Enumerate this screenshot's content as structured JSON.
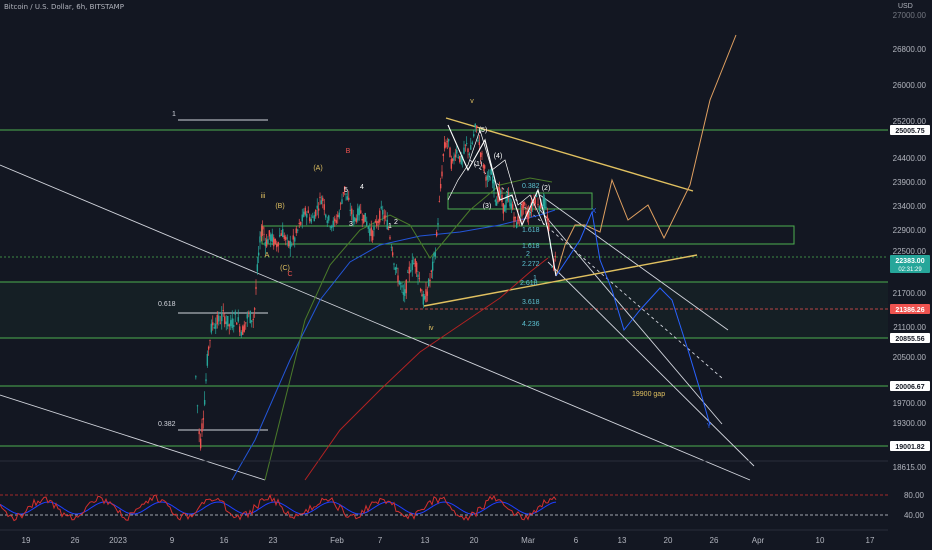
{
  "header": {
    "title": "Bitcoin / U.S. Dollar, 6h, BITSTAMP",
    "currency": "USD"
  },
  "colors": {
    "bg": "#131722",
    "up": "#26a69a",
    "down": "#ef5350",
    "zone": "#4caf50",
    "trend": "#e0c060",
    "projection": "#e0a060",
    "blue": "#2962ff",
    "red_ma": "#b22222",
    "green_ma": "#4a7a2a",
    "rsi": "#d32f2f",
    "rsi_signal": "#1e3fff",
    "text": "#b2b5be"
  },
  "chart_data": {
    "type": "candlestick",
    "ylim": [
      18150,
      27800
    ],
    "y_ticks": [
      26800,
      26000,
      25200,
      24400,
      23900,
      23400,
      22900,
      22500,
      21700,
      21100,
      20500,
      19700,
      19300,
      18615
    ],
    "y_tick_labels": [
      "26800.00",
      "26000.00",
      "25200.00",
      "24400.00",
      "23900.00",
      "23400.00",
      "22900.00",
      "22500.00",
      "21700.00",
      "21100.00",
      "20500.00",
      "19700.00",
      "19300.00",
      "18615.00"
    ],
    "top_label": "27000.00",
    "x_ticks": [
      "19",
      "26",
      "2023",
      "9",
      "16",
      "23",
      "Feb",
      "7",
      "13",
      "20",
      "Mar",
      "6",
      "13",
      "20",
      "26",
      "Apr",
      "10",
      "17"
    ],
    "price_labels": [
      {
        "value": "25005.75",
        "kind": "zone"
      },
      {
        "value": "22383.00",
        "sub": "02:31:29",
        "kind": "current"
      },
      {
        "value": "21386.26",
        "kind": "red"
      },
      {
        "value": "20855.56",
        "kind": "zone"
      },
      {
        "value": "20006.67",
        "kind": "zone"
      },
      {
        "value": "19001.82",
        "kind": "zone"
      }
    ],
    "fib_labels": [
      "1",
      "0.618",
      "0.382"
    ],
    "extension_labels": [
      "0.382",
      "1.618",
      "1.618",
      "2",
      "2.272",
      "2.618",
      "1",
      "3.618",
      "4.236"
    ],
    "wave_labels": [
      "v",
      "iii",
      "iv",
      "(5)",
      "(4)",
      "(3)",
      "(2)",
      "(1)",
      "5",
      "4",
      "3",
      "2",
      "1",
      "(A)",
      "(B)",
      "(C)",
      "A",
      "B",
      "C",
      "X",
      "Y"
    ],
    "annotations": [
      "19900 gap"
    ],
    "rsi": {
      "ticks": [
        "80.00",
        "40.00"
      ],
      "ylim": [
        10,
        100
      ],
      "levels": [
        80,
        40
      ]
    }
  }
}
